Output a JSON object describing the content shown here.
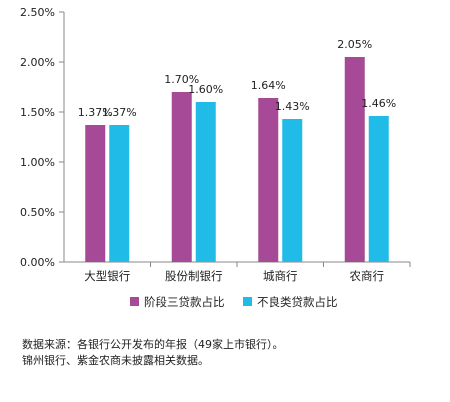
{
  "chart_data": {
    "type": "bar",
    "categories": [
      "大型银行",
      "股份制银行",
      "城商行",
      "农商行"
    ],
    "series": [
      {
        "name": "阶段三贷款占比",
        "color": "#A64A97",
        "values": [
          1.37,
          1.7,
          1.64,
          2.05
        ]
      },
      {
        "name": "不良类贷款占比",
        "color": "#21BBE8",
        "values": [
          1.37,
          1.6,
          1.43,
          1.46
        ]
      }
    ],
    "data_labels": [
      [
        "1.37%",
        "1.70%",
        "1.64%",
        "2.05%"
      ],
      [
        "1.37%",
        "1.60%",
        "1.43%",
        "1.46%"
      ]
    ],
    "y_ticks": [
      0,
      0.5,
      1.0,
      1.5,
      2.0,
      2.5
    ],
    "y_tick_labels": [
      "0.00%",
      "0.50%",
      "1.00%",
      "1.50%",
      "2.00%",
      "2.50%"
    ],
    "ylim": [
      0,
      2.5
    ],
    "grid": false,
    "legend_position": "bottom",
    "title": "",
    "xlabel": "",
    "ylabel": ""
  },
  "notes": [
    "数据来源：各银行公开发布的年报（49家上市银行）。",
    "锦州银行、紫金农商未披露相关数据。"
  ]
}
